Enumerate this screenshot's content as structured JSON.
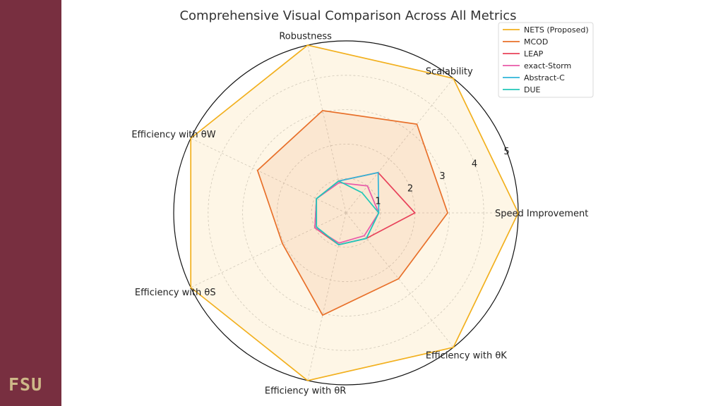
{
  "logo": "FSU",
  "colors": {
    "sidebar": "#782f40",
    "logo": "#ceb888",
    "series": [
      "#f2b01e",
      "#e8702a",
      "#e8425a",
      "#e85aa8",
      "#2fb4d8",
      "#22c7b8"
    ]
  },
  "chart_data": {
    "type": "radar",
    "title": "Comprehensive Visual Comparison Across All Metrics",
    "axes": [
      "Speed Improvement",
      "Scalability",
      "Robustness",
      "Efficiency with θW",
      "Efficiency with θS",
      "Efficiency with θR",
      "Efficiency with θK"
    ],
    "rticks": [
      "1",
      "2",
      "3",
      "4",
      "5"
    ],
    "rlim": [
      0,
      5
    ],
    "grid": true,
    "legend_position": "top-right",
    "series": [
      {
        "name": "NETS (Proposed)",
        "values": [
          5.0,
          5.0,
          5.0,
          5.0,
          5.0,
          5.0,
          5.0
        ],
        "fill": true
      },
      {
        "name": "MCOD",
        "values": [
          2.95,
          3.3,
          3.05,
          2.85,
          2.05,
          3.05,
          2.45
        ],
        "fill": true
      },
      {
        "name": "LEAP",
        "values": [
          2.0,
          1.5,
          0.95,
          0.95,
          1.0,
          0.95,
          0.95
        ],
        "fill": false
      },
      {
        "name": "exact-Storm",
        "values": [
          0.95,
          1.0,
          0.9,
          0.95,
          1.0,
          0.9,
          0.85
        ],
        "fill": false
      },
      {
        "name": "Abstract-C",
        "values": [
          0.95,
          1.5,
          0.95,
          0.95,
          0.95,
          0.95,
          0.95
        ],
        "fill": false
      },
      {
        "name": "DUE",
        "values": [
          0.95,
          0.75,
          0.95,
          0.95,
          0.95,
          0.95,
          0.95
        ],
        "fill": false
      }
    ]
  }
}
